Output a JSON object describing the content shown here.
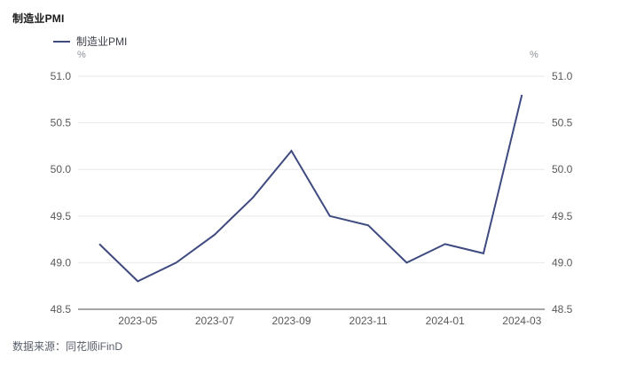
{
  "page_title": "制造业PMI",
  "legend": {
    "label": "制造业PMI"
  },
  "axes": {
    "left_unit": "%",
    "right_unit": "%",
    "y_tick_labels": [
      "51.0",
      "50.5",
      "50.0",
      "49.5",
      "49.0",
      "48.5"
    ],
    "x_tick_labels": [
      "2023-05",
      "2023-07",
      "2023-09",
      "2023-11",
      "2024-01",
      "2024-03"
    ]
  },
  "footer": {
    "source_label": "数据来源：同花顺iFinD"
  },
  "colors": {
    "line": "#3f4b80",
    "gridline": "#e8e8e8",
    "axis_line": "#4d4d4d",
    "tick_label": "#595959"
  },
  "chart_data": {
    "type": "line",
    "title": "制造业PMI",
    "ylabel": "%",
    "x": [
      "2023-04",
      "2023-05",
      "2023-06",
      "2023-07",
      "2023-08",
      "2023-09",
      "2023-10",
      "2023-11",
      "2023-12",
      "2024-01",
      "2024-02",
      "2024-03"
    ],
    "series": [
      {
        "name": "制造业PMI",
        "values": [
          49.2,
          48.8,
          49.0,
          49.3,
          49.7,
          50.2,
          49.5,
          49.4,
          49.0,
          49.2,
          49.1,
          50.8
        ]
      }
    ],
    "ylim": [
      48.5,
      51.0
    ],
    "y_tick_step": 0.5,
    "x_tick_labels": [
      "2023-05",
      "2023-07",
      "2023-09",
      "2023-11",
      "2024-01",
      "2024-03"
    ],
    "grid": "horizontal",
    "legend_position": "top-left"
  }
}
